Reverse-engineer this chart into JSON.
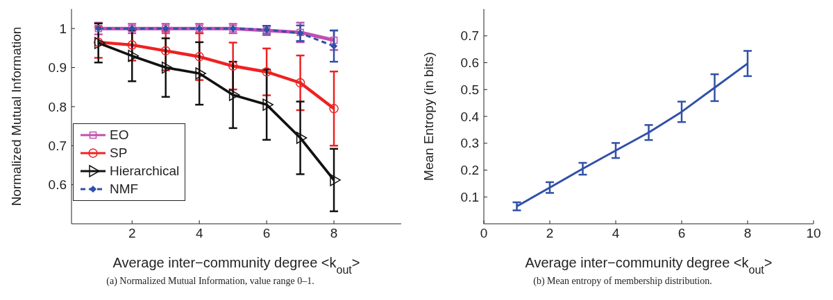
{
  "chart_data": [
    {
      "type": "line",
      "xlabel": "Average inter−community degree <k$_{out}$>",
      "ylabel": "Normalized Mutual Information",
      "x": [
        1,
        2,
        3,
        4,
        5,
        6,
        7,
        8
      ],
      "xlim": [
        0.2,
        10
      ],
      "xticks": [
        2,
        4,
        6,
        8
      ],
      "ylim": [
        0.5,
        1.05
      ],
      "yticks": [
        0.6,
        0.7,
        0.8,
        0.9,
        1
      ],
      "grid": false,
      "legend": "bottom left",
      "annotations": [
        "(a) Normalized Mutual Information, value range 0–1."
      ],
      "series": [
        {
          "name": "EO",
          "color": "#c050b0",
          "marker": "square",
          "line_style": "solid",
          "values": [
            1,
            1,
            1,
            1,
            1,
            0.995,
            0.99,
            0.97
          ],
          "errors": [
            0.015,
            0.012,
            0.012,
            0.012,
            0.012,
            0.012,
            0.025,
            0.025
          ]
        },
        {
          "name": "SP",
          "color": "#ee2222",
          "marker": "circle",
          "line_style": "solid",
          "values": [
            0.965,
            0.958,
            0.943,
            0.928,
            0.904,
            0.889,
            0.861,
            0.795
          ],
          "errors": [
            0.04,
            0.04,
            0.05,
            0.06,
            0.06,
            0.06,
            0.07,
            0.095
          ]
        },
        {
          "name": "Hierarchical",
          "color": "#111111",
          "marker": "triangle",
          "line_style": "solid",
          "values": [
            0.963,
            0.93,
            0.9,
            0.885,
            0.83,
            0.805,
            0.72,
            0.612
          ],
          "errors": [
            0.05,
            0.065,
            0.075,
            0.08,
            0.085,
            0.09,
            0.093,
            0.08
          ]
        },
        {
          "name": "NMF",
          "color": "#3050a8",
          "marker": "diamond",
          "line_style": "dashed",
          "values": [
            1,
            1,
            1,
            1,
            1,
            0.997,
            0.988,
            0.955
          ],
          "errors": [
            null,
            null,
            null,
            null,
            null,
            0.01,
            0.02,
            0.04
          ]
        }
      ]
    },
    {
      "type": "line",
      "xlabel": "Average inter−community degree <k$_{out}$>",
      "ylabel": "Mean Entropy (in bits)",
      "x": [
        1,
        2,
        3,
        4,
        5,
        6,
        7,
        8
      ],
      "xlim": [
        0,
        10
      ],
      "xticks": [
        0,
        2,
        4,
        6,
        8,
        10
      ],
      "ylim": [
        0,
        0.8
      ],
      "yticks": [
        0.1,
        0.2,
        0.3,
        0.4,
        0.5,
        0.6,
        0.7
      ],
      "grid": false,
      "legend": false,
      "marker": "none",
      "annotations": [
        "(b) Mean entropy of membership distribution."
      ],
      "series": [
        {
          "color": "#3050a8",
          "values": [
            0.065,
            0.135,
            0.205,
            0.273,
            0.34,
            0.417,
            0.507,
            0.597
          ],
          "errors": [
            0.015,
            0.02,
            0.022,
            0.028,
            0.028,
            0.038,
            0.05,
            0.047
          ]
        }
      ]
    }
  ]
}
